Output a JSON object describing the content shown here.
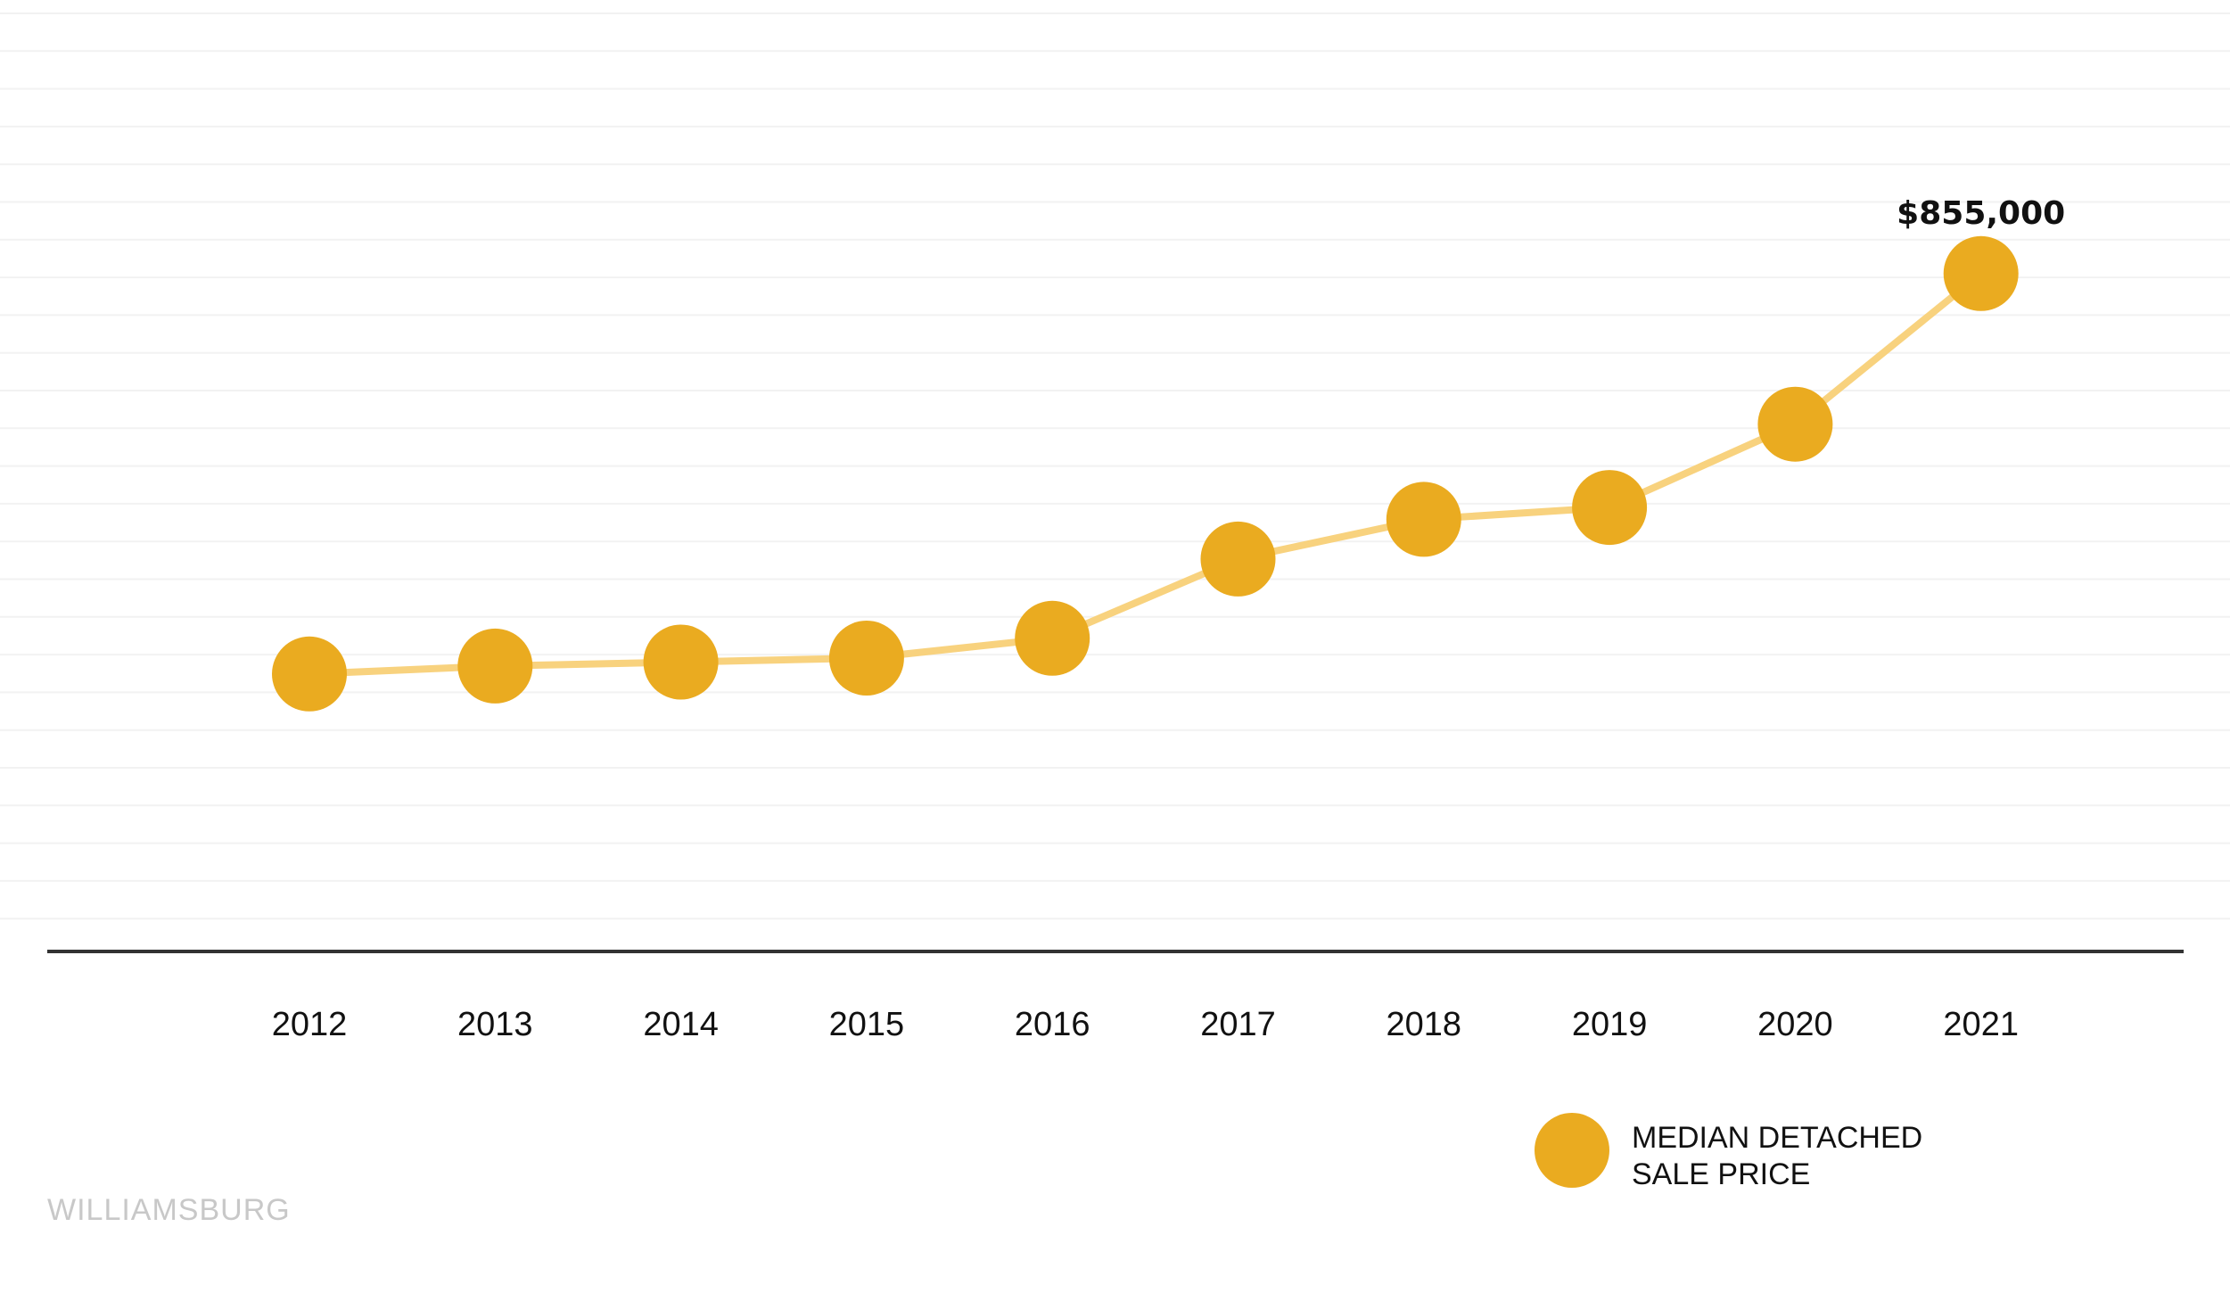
{
  "chart_data": {
    "type": "line",
    "categories": [
      "2012",
      "2013",
      "2014",
      "2015",
      "2016",
      "2017",
      "2018",
      "2019",
      "2020",
      "2021"
    ],
    "series": [
      {
        "name": "MEDIAN DETACHED SALE PRICE",
        "values": [
          350000,
          360000,
          365000,
          370000,
          395000,
          495000,
          545000,
          560000,
          665000,
          855000
        ]
      }
    ],
    "annotations": [
      {
        "category": "2021",
        "text": "$855,000"
      }
    ],
    "ylim": [
      0,
      1200000
    ],
    "grid": true,
    "legend_position": "bottom-right",
    "colors": {
      "marker": "#eaab20",
      "line": "#f8d27e",
      "axis": "#333333",
      "grid": "#f2f2f2"
    }
  },
  "legend": {
    "line1": "MEDIAN DETACHED",
    "line2": "SALE PRICE"
  },
  "footer": {
    "label": "WILLIAMSBURG"
  }
}
